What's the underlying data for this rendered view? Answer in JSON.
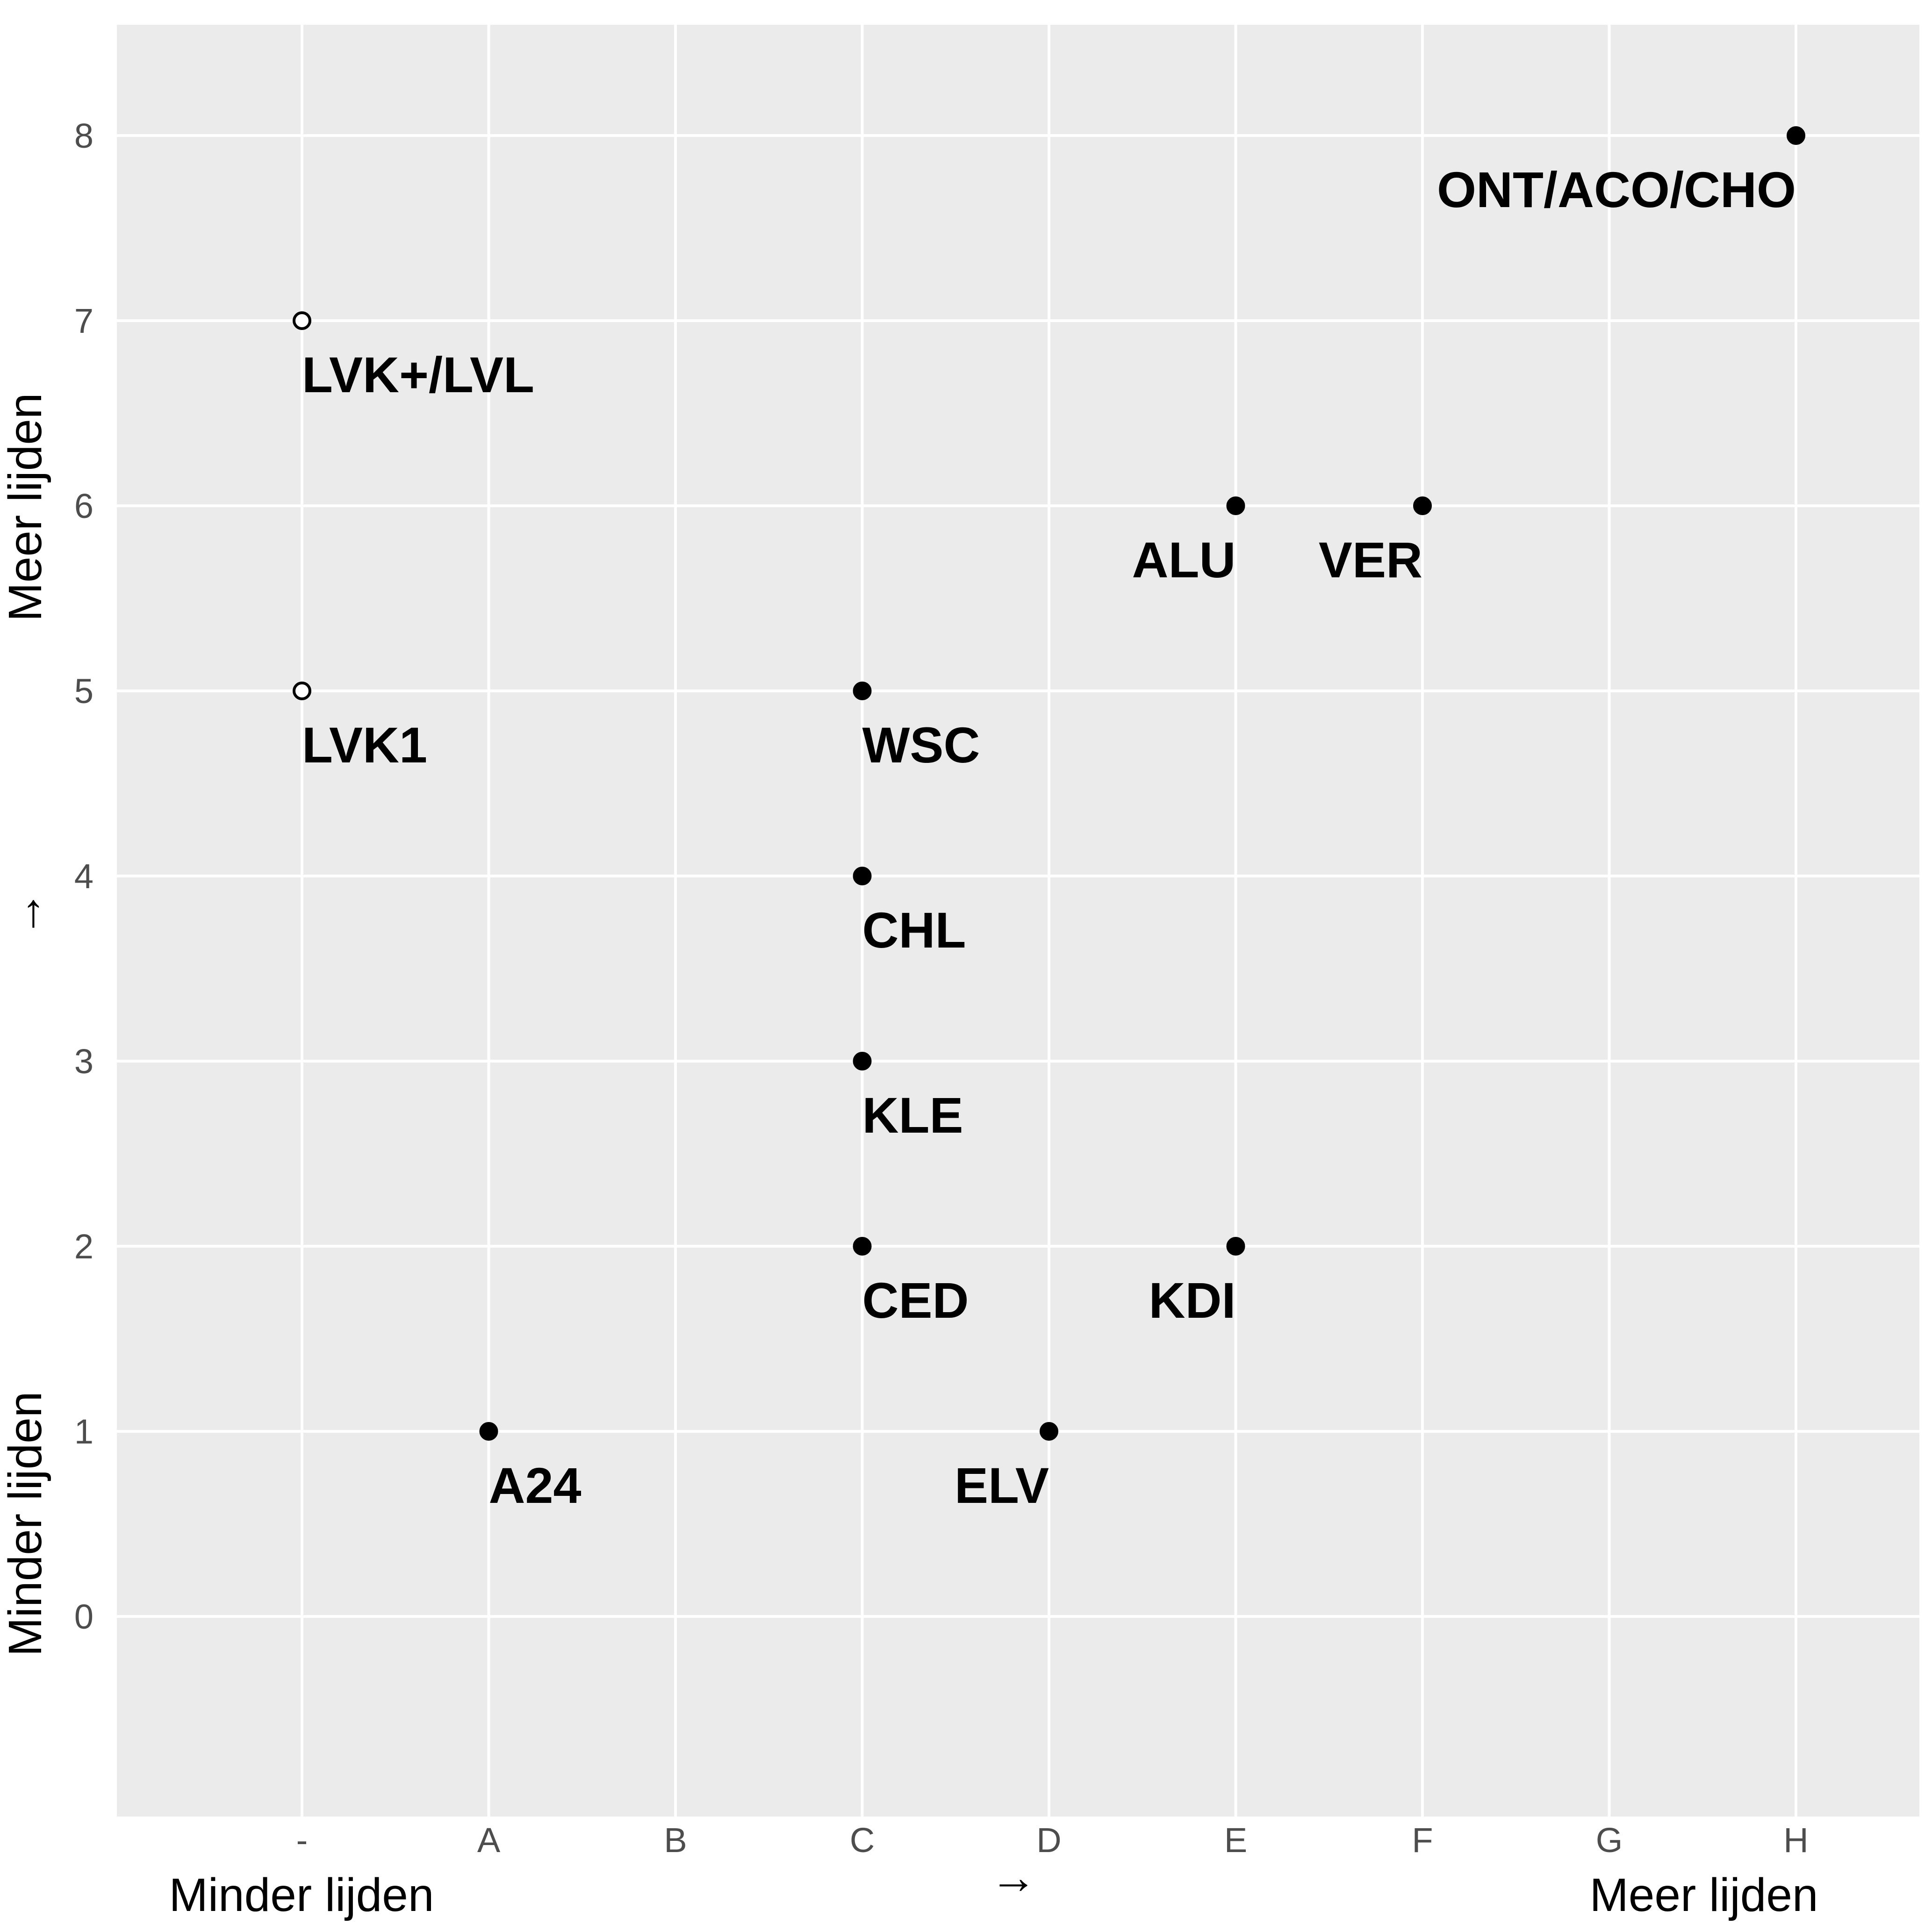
{
  "chart_data": {
    "type": "scatter",
    "title": "",
    "x_categories": [
      "-",
      "A",
      "B",
      "C",
      "D",
      "E",
      "F",
      "G",
      "H"
    ],
    "y_ticks": [
      0,
      1,
      2,
      3,
      4,
      5,
      6,
      7,
      8
    ],
    "ylim": [
      -1,
      8.6
    ],
    "grid": true,
    "points": [
      {
        "x": "-",
        "y": 7,
        "label": "LVK+/LVL",
        "filled": false
      },
      {
        "x": "-",
        "y": 5,
        "label": "LVK1",
        "filled": false
      },
      {
        "x": "A",
        "y": 1,
        "label": "A24",
        "filled": true
      },
      {
        "x": "C",
        "y": 5,
        "label": "WSC",
        "filled": true
      },
      {
        "x": "C",
        "y": 4,
        "label": "CHL",
        "filled": true
      },
      {
        "x": "C",
        "y": 3,
        "label": "KLE",
        "filled": true
      },
      {
        "x": "C",
        "y": 2,
        "label": "CED",
        "filled": true
      },
      {
        "x": "D",
        "y": 1,
        "label": "ELV",
        "filled": true
      },
      {
        "x": "E",
        "y": 6,
        "label": "ALU",
        "filled": true
      },
      {
        "x": "E",
        "y": 2,
        "label": "KDI",
        "filled": true
      },
      {
        "x": "F",
        "y": 6,
        "label": "VER",
        "filled": true
      },
      {
        "x": "H",
        "y": 8,
        "label": "ONT/ACO/CHO",
        "filled": true
      }
    ],
    "x_axis": {
      "label_left": "Minder lijden",
      "label_center": "→",
      "label_right": "Meer lijden"
    },
    "y_axis": {
      "label_bottom": "Minder lijden",
      "label_center": "→",
      "label_top": "Meer lijden"
    }
  },
  "colors": {
    "panel_background": "#ebebeb",
    "grid": "#ffffff",
    "point": "#000000",
    "tick_text": "#4d4d4d"
  }
}
